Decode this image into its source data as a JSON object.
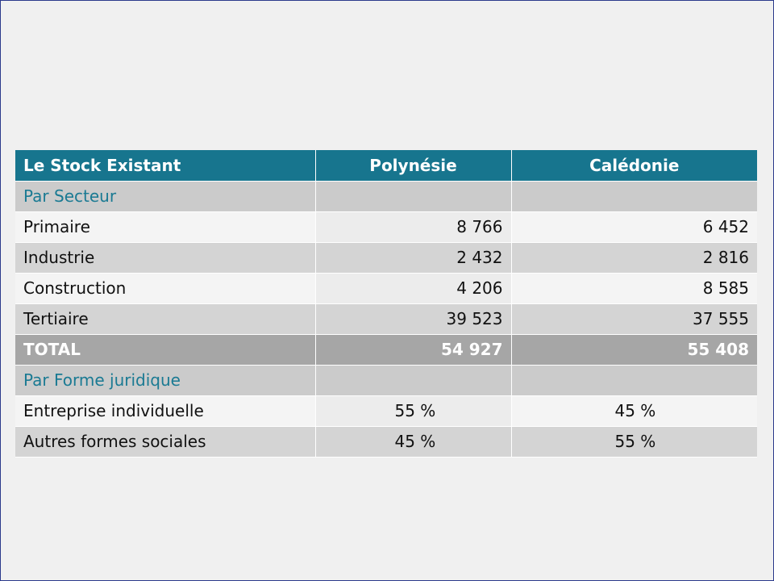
{
  "table": {
    "header": {
      "label": "Le Stock Existant",
      "col1": "Polynésie",
      "col2": "Calédonie"
    },
    "section1": "Par Secteur",
    "rows_secteur": [
      {
        "label": "Primaire",
        "polynesie": "8 766",
        "caledonie": "6 452"
      },
      {
        "label": "Industrie",
        "polynesie": "2 432",
        "caledonie": "2 816"
      },
      {
        "label": "Construction",
        "polynesie": "4 206",
        "caledonie": "8 585"
      },
      {
        "label": "Tertiaire",
        "polynesie": "39 523",
        "caledonie": "37 555"
      }
    ],
    "total": {
      "label": "TOTAL",
      "polynesie": "54 927",
      "caledonie": "55 408"
    },
    "section2": "Par Forme juridique",
    "rows_forme": [
      {
        "label": "Entreprise individuelle",
        "polynesie": "55 %",
        "caledonie": "45 %"
      },
      {
        "label": "Autres formes sociales",
        "polynesie": "45 %",
        "caledonie": "55 %"
      }
    ]
  },
  "colors": {
    "header": "#17758e",
    "section_text": "#1a7a93",
    "total_bg": "#a6a6a6",
    "border": "#2b3a8c"
  }
}
